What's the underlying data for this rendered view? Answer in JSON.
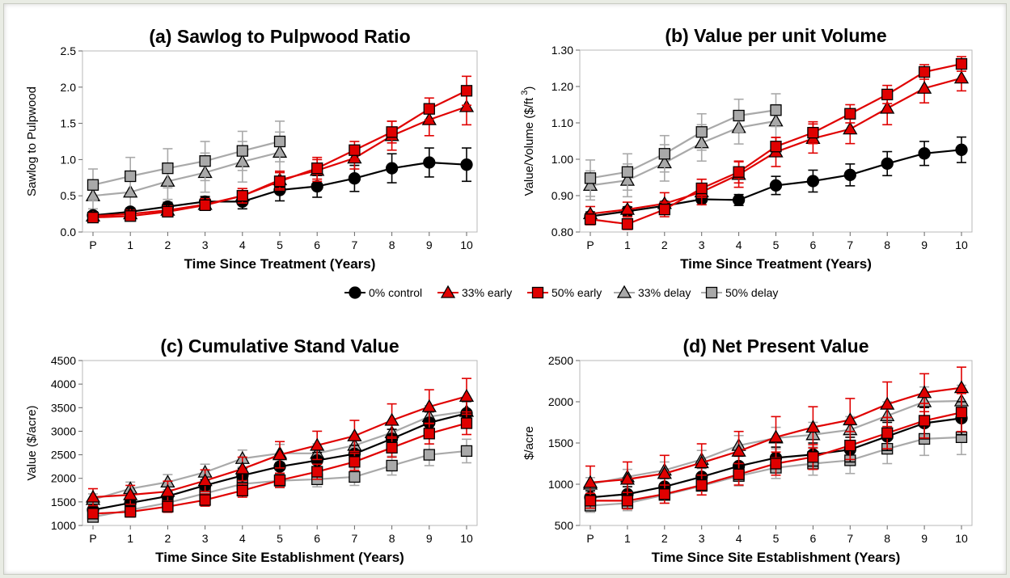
{
  "categories": [
    "P",
    "1",
    "2",
    "3",
    "4",
    "5",
    "6",
    "7",
    "8",
    "9",
    "10"
  ],
  "legend": [
    {
      "name": "0% control",
      "marker": "circle",
      "fill": "#000000",
      "line": "#000000"
    },
    {
      "name": "33% early",
      "marker": "triangle",
      "fill": "#e00000",
      "line": "#e00000"
    },
    {
      "name": "50% early",
      "marker": "square",
      "fill": "#e00000",
      "line": "#e00000"
    },
    {
      "name": "33% delay",
      "marker": "triangle",
      "fill": "#a9a9a9",
      "line": "#a9a9a9"
    },
    {
      "name": "50% delay",
      "marker": "square",
      "fill": "#a9a9a9",
      "line": "#a9a9a9"
    }
  ],
  "chart_data": [
    {
      "type": "line",
      "title": "(a) Sawlog to Pulpwood Ratio",
      "xlabel": "Time Since Treatment (Years)",
      "ylabel": "Sawlog to Pulpwood",
      "ylim": [
        0,
        2.5
      ],
      "yticks": [
        "0.0",
        "0.5",
        "1.0",
        "1.5",
        "2.0",
        "2.5"
      ],
      "grid": false,
      "series": [
        {
          "name": "0% control",
          "values": [
            0.23,
            0.28,
            0.35,
            0.42,
            0.42,
            0.58,
            0.63,
            0.74,
            0.88,
            0.96,
            0.93
          ],
          "err": [
            0.05,
            0.05,
            0.06,
            0.07,
            0.1,
            0.15,
            0.15,
            0.18,
            0.2,
            0.2,
            0.23
          ]
        },
        {
          "name": "33% early",
          "values": [
            0.22,
            0.25,
            0.3,
            0.38,
            0.5,
            0.72,
            0.85,
            1.02,
            1.33,
            1.55,
            1.73
          ],
          "err": [
            0.05,
            0.05,
            0.06,
            0.08,
            0.1,
            0.12,
            0.15,
            0.15,
            0.2,
            0.22,
            0.25
          ]
        },
        {
          "name": "50% early",
          "values": [
            0.2,
            0.22,
            0.28,
            0.37,
            0.5,
            0.7,
            0.88,
            1.13,
            1.38,
            1.7,
            1.95
          ],
          "err": [
            0.05,
            0.05,
            0.06,
            0.07,
            0.1,
            0.12,
            0.15,
            0.12,
            0.15,
            0.15,
            0.2
          ]
        },
        {
          "name": "33% delay",
          "values": [
            0.5,
            0.55,
            0.7,
            0.82,
            0.97,
            1.1
          ],
          "err": [
            0.18,
            0.22,
            0.25,
            0.27,
            0.28,
            0.28
          ]
        },
        {
          "name": "50% delay",
          "values": [
            0.65,
            0.77,
            0.88,
            0.98,
            1.12,
            1.25
          ],
          "err": [
            0.22,
            0.26,
            0.27,
            0.27,
            0.27,
            0.28
          ]
        }
      ]
    },
    {
      "type": "line",
      "title": "(b) Value per unit Volume",
      "xlabel": "Time Since Treatment (Years)",
      "ylabel": "Value/Volume ($/ft",
      "ylabel_sup": "3",
      "ylabel_end": ")",
      "ylim": [
        0.8,
        1.3
      ],
      "yticks": [
        "0.80",
        "0.90",
        "1.00",
        "1.10",
        "1.20",
        "1.30"
      ],
      "grid": false,
      "series": [
        {
          "name": "0% control",
          "values": [
            0.843,
            0.857,
            0.872,
            0.89,
            0.888,
            0.928,
            0.94,
            0.957,
            0.988,
            1.016,
            1.026
          ],
          "err": [
            0.012,
            0.012,
            0.012,
            0.015,
            0.015,
            0.025,
            0.03,
            0.03,
            0.033,
            0.033,
            0.035
          ]
        },
        {
          "name": "33% early",
          "values": [
            0.85,
            0.862,
            0.878,
            0.91,
            0.958,
            1.02,
            1.057,
            1.083,
            1.14,
            1.195,
            1.223
          ],
          "err": [
            0.02,
            0.02,
            0.03,
            0.035,
            0.035,
            0.04,
            0.04,
            0.04,
            0.045,
            0.04,
            0.035
          ]
        },
        {
          "name": "50% early",
          "values": [
            0.835,
            0.822,
            0.862,
            0.92,
            0.965,
            1.035,
            1.073,
            1.125,
            1.178,
            1.24,
            1.262
          ],
          "err": [
            0.015,
            0.015,
            0.02,
            0.025,
            0.03,
            0.025,
            0.03,
            0.025,
            0.025,
            0.02,
            0.02
          ]
        },
        {
          "name": "33% delay",
          "values": [
            0.928,
            0.942,
            0.99,
            1.045,
            1.087,
            1.105
          ],
          "err": [
            0.04,
            0.045,
            0.05,
            0.05,
            0.045,
            0.045
          ]
        },
        {
          "name": "50% delay",
          "values": [
            0.948,
            0.965,
            1.015,
            1.075,
            1.12,
            1.135
          ],
          "err": [
            0.05,
            0.05,
            0.05,
            0.05,
            0.045,
            0.045
          ]
        }
      ]
    },
    {
      "type": "line",
      "title": "(c) Cumulative Stand Value",
      "xlabel": "Time Since Site Establishment (Years)",
      "ylabel": "Value ($/acre)",
      "ylim": [
        1000,
        4500
      ],
      "yticks": [
        "1000",
        "1500",
        "2000",
        "2500",
        "3000",
        "3500",
        "4000",
        "4500"
      ],
      "grid": false,
      "series": [
        {
          "name": "0% control",
          "values": [
            1330,
            1480,
            1620,
            1850,
            2060,
            2250,
            2380,
            2520,
            2840,
            3180,
            3380
          ],
          "err": [
            80,
            100,
            100,
            120,
            150,
            150,
            170,
            180,
            200,
            230,
            250
          ]
        },
        {
          "name": "33% early",
          "values": [
            1600,
            1650,
            1720,
            1950,
            2200,
            2500,
            2700,
            2900,
            3230,
            3520,
            3740
          ],
          "err": [
            180,
            200,
            220,
            230,
            250,
            280,
            300,
            330,
            350,
            360,
            380
          ]
        },
        {
          "name": "50% early",
          "values": [
            1250,
            1290,
            1400,
            1540,
            1740,
            1960,
            2140,
            2350,
            2650,
            2950,
            3170
          ],
          "err": [
            100,
            110,
            120,
            130,
            140,
            150,
            160,
            180,
            200,
            220,
            240
          ]
        },
        {
          "name": "33% delay",
          "values": [
            1550,
            1780,
            1920,
            2130,
            2420,
            2530,
            2530,
            2700,
            2970,
            3310,
            3420
          ],
          "err": [
            120,
            140,
            160,
            170,
            180,
            190,
            200,
            210,
            220,
            230,
            240
          ]
        },
        {
          "name": "50% delay",
          "values": [
            1180,
            1330,
            1480,
            1680,
            1880,
            1950,
            1980,
            2030,
            2270,
            2500,
            2580
          ],
          "err": [
            100,
            110,
            120,
            130,
            140,
            150,
            160,
            180,
            200,
            230,
            250
          ]
        }
      ]
    },
    {
      "type": "line",
      "title": "(d) Net Present Value",
      "xlabel": "Time Since Site Establishment (Years)",
      "ylabel": "$/acre",
      "ylim": [
        500,
        2500
      ],
      "yticks": [
        "500",
        "1000",
        "1500",
        "2000",
        "2500"
      ],
      "grid": false,
      "series": [
        {
          "name": "0% control",
          "values": [
            840,
            880,
            970,
            1090,
            1220,
            1320,
            1360,
            1420,
            1580,
            1740,
            1800
          ],
          "err": [
            80,
            90,
            100,
            110,
            120,
            130,
            140,
            150,
            170,
            190,
            200
          ]
        },
        {
          "name": "33% early",
          "values": [
            1020,
            1060,
            1130,
            1260,
            1400,
            1570,
            1690,
            1780,
            1970,
            2110,
            2170
          ],
          "err": [
            200,
            210,
            220,
            230,
            240,
            250,
            250,
            260,
            270,
            230,
            250
          ]
        },
        {
          "name": "50% early",
          "values": [
            800,
            800,
            880,
            990,
            1120,
            1250,
            1330,
            1470,
            1620,
            1770,
            1870
          ],
          "err": [
            90,
            100,
            110,
            120,
            130,
            140,
            150,
            170,
            190,
            210,
            230
          ]
        },
        {
          "name": "33% delay",
          "values": [
            1000,
            1090,
            1170,
            1300,
            1470,
            1560,
            1600,
            1660,
            1830,
            2000,
            2010
          ],
          "err": [
            80,
            90,
            100,
            110,
            120,
            130,
            150,
            160,
            170,
            180,
            190
          ]
        },
        {
          "name": "50% delay",
          "values": [
            740,
            770,
            870,
            980,
            1100,
            1200,
            1250,
            1290,
            1430,
            1550,
            1570
          ],
          "err": [
            80,
            90,
            100,
            110,
            120,
            130,
            140,
            160,
            180,
            200,
            210
          ]
        }
      ]
    }
  ]
}
